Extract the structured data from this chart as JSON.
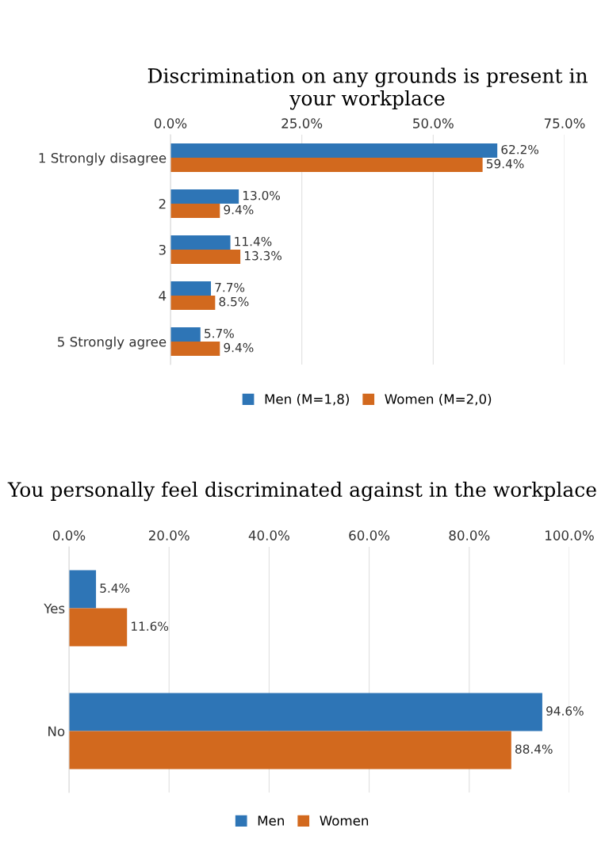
{
  "chart_data": [
    {
      "type": "bar",
      "orientation": "horizontal",
      "title": "Discrimination on any grounds is present in your workplace",
      "categories": [
        "1 Strongly disagree",
        "2",
        "3",
        "4",
        "5 Strongly agree"
      ],
      "xlim": [
        0,
        75
      ],
      "xticks": [
        {
          "value": 0,
          "label": "0.0%"
        },
        {
          "value": 25,
          "label": "25.0%"
        },
        {
          "value": 50,
          "label": "50.0%"
        },
        {
          "value": 75,
          "label": "75.0%"
        }
      ],
      "grid": "x",
      "legend": "bottom",
      "series": [
        {
          "name": "Men (M=1,8)",
          "color": "#2e75b6",
          "values": [
            62.2,
            13.0,
            11.4,
            7.7,
            5.7
          ],
          "value_labels": [
            "62.2%",
            "13.0%",
            "11.4%",
            "7.7%",
            "5.7%"
          ]
        },
        {
          "name": "Women (M=2,0)",
          "color": "#d2691e",
          "values": [
            59.4,
            9.4,
            13.3,
            8.5,
            9.4
          ],
          "value_labels": [
            "59.4%",
            "9.4%",
            "13.3%",
            "8.5%",
            "9.4%"
          ]
        }
      ]
    },
    {
      "type": "bar",
      "orientation": "horizontal",
      "title": "You personally feel discriminated against in the workplace",
      "categories": [
        "Yes",
        "No"
      ],
      "xlim": [
        0,
        100
      ],
      "xticks": [
        {
          "value": 0,
          "label": "0.0%"
        },
        {
          "value": 20,
          "label": "20.0%"
        },
        {
          "value": 40,
          "label": "40.0%"
        },
        {
          "value": 60,
          "label": "60.0%"
        },
        {
          "value": 80,
          "label": "80.0%"
        },
        {
          "value": 100,
          "label": "100.0%"
        }
      ],
      "grid": "x",
      "legend": "bottom",
      "series": [
        {
          "name": "Men",
          "color": "#2e75b6",
          "values": [
            5.4,
            94.6
          ],
          "value_labels": [
            "5.4%",
            "94.6%"
          ]
        },
        {
          "name": "Women",
          "color": "#d2691e",
          "values": [
            11.6,
            88.4
          ],
          "value_labels": [
            "11.6%",
            "88.4%"
          ]
        }
      ]
    }
  ]
}
